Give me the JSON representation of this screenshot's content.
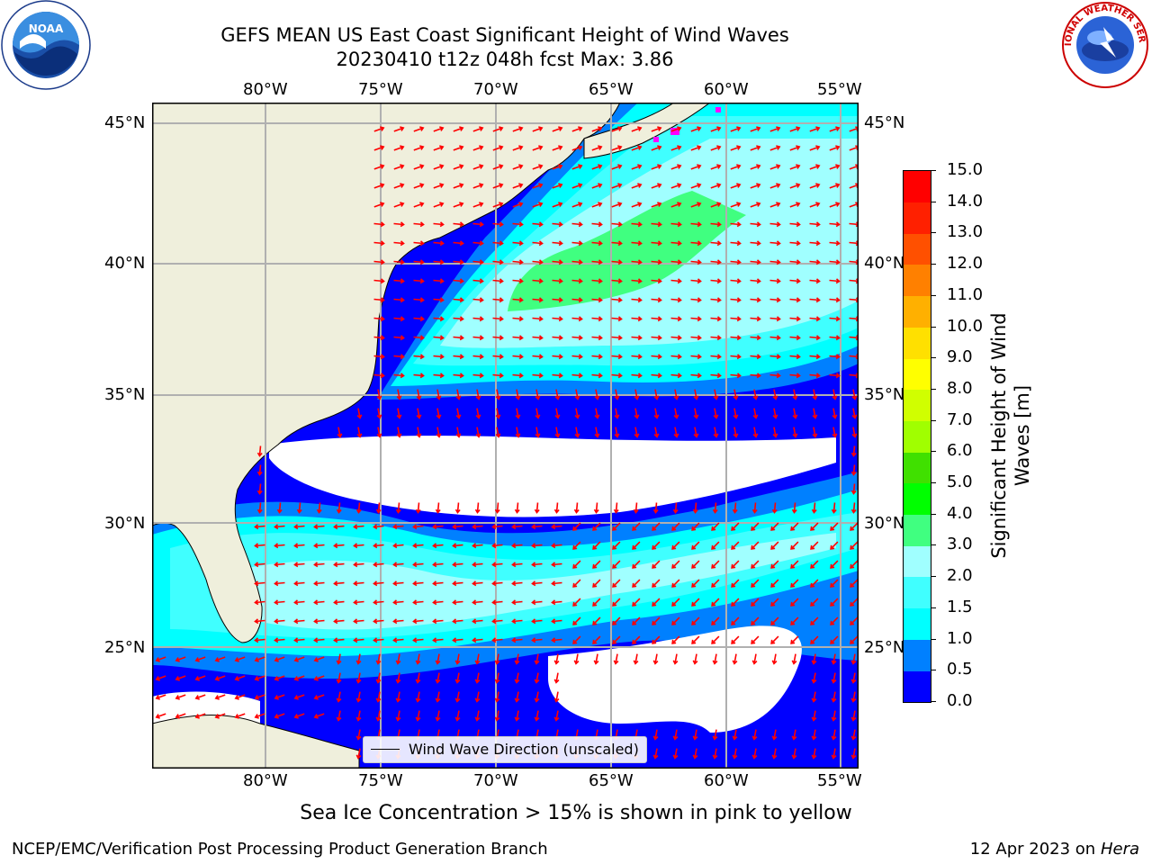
{
  "header": {
    "title_line1": "GEFS MEAN US East Coast Significant Height of Wind Waves",
    "title_line2": "20230410 t12z 048h fcst   Max: 3.86"
  },
  "logos": {
    "left": {
      "name": "noaa-logo",
      "text": "NOAA"
    },
    "right": {
      "name": "nws-logo",
      "text": "NATIONAL WEATHER SERVICE"
    }
  },
  "map": {
    "lon_ticks": [
      "80°W",
      "75°W",
      "70°W",
      "65°W",
      "60°W",
      "55°W"
    ],
    "lat_ticks": [
      "45°N",
      "40°N",
      "35°N",
      "30°N",
      "25°N"
    ],
    "legend_label": "Wind Wave Direction (unscaled)",
    "colors": {
      "land": "#efefdc",
      "grid": "#b0b0b0",
      "arrow": "#ff0000",
      "ice": "#ff00ff"
    }
  },
  "colorbar": {
    "label_line1": "Significant Height of Wind",
    "label_line2": "Waves [m]",
    "ticks": [
      "0.0",
      "0.5",
      "1.0",
      "1.5",
      "2.0",
      "3.0",
      "4.0",
      "5.0",
      "6.0",
      "7.0",
      "8.0",
      "9.0",
      "10.0",
      "11.0",
      "12.0",
      "13.0",
      "14.0",
      "15.0"
    ],
    "colors": [
      "#0000ff",
      "#0080ff",
      "#00ffff",
      "#40ffff",
      "#a0ffff",
      "#40ff80",
      "#00ff00",
      "#40e000",
      "#a0ff00",
      "#d0ff00",
      "#ffff00",
      "#ffe000",
      "#ffb000",
      "#ff8000",
      "#ff5000",
      "#ff2000",
      "#ff0000"
    ]
  },
  "caption": "Sea Ice Concentration > 15% is shown in pink to yellow",
  "footer": {
    "left": "NCEP/EMC/Verification Post Processing Product Generation Branch",
    "right_date": "12 Apr 2023 on ",
    "right_host": "Hera"
  }
}
